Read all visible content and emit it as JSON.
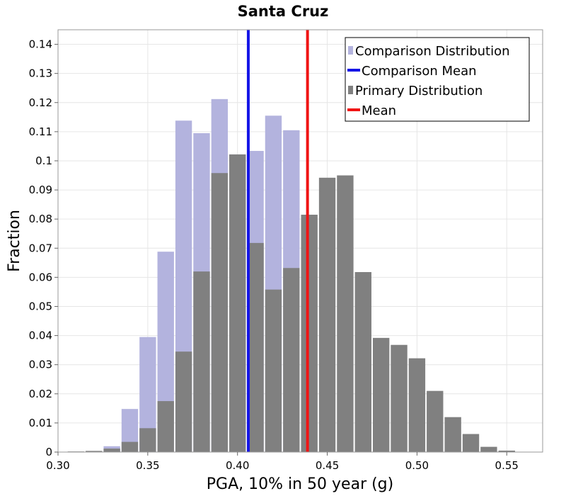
{
  "chart_data": {
    "type": "bar",
    "title": "Santa Cruz",
    "xlabel": "PGA, 10% in 50 year (g)",
    "ylabel": "Fraction",
    "xlim": [
      0.3,
      0.57
    ],
    "ylim": [
      0,
      0.145
    ],
    "xticks": [
      0.3,
      0.35,
      0.4,
      0.45,
      0.5,
      0.55
    ],
    "xtick_labels": [
      "0.30",
      "0.35",
      "0.40",
      "0.45",
      "0.50",
      "0.55"
    ],
    "yticks": [
      0,
      0.01,
      0.02,
      0.03,
      0.04,
      0.05,
      0.06,
      0.07,
      0.08,
      0.09,
      0.1,
      0.11,
      0.12,
      0.13,
      0.14
    ],
    "ytick_labels": [
      "0",
      "0.01",
      "0.02",
      "0.03",
      "0.04",
      "0.05",
      "0.06",
      "0.07",
      "0.08",
      "0.09",
      "0.1",
      "0.11",
      "0.12",
      "0.13",
      "0.14"
    ],
    "bin_width": 0.01,
    "grid": true,
    "legend_position": "top-right",
    "series": [
      {
        "name": "Comparison Distribution",
        "color": "#b3b3de",
        "bin_centers": [
          0.31,
          0.32,
          0.33,
          0.34,
          0.35,
          0.36,
          0.37,
          0.38,
          0.39,
          0.4,
          0.41,
          0.42,
          0.43
        ],
        "values": [
          0.0,
          0.0,
          0.002,
          0.0148,
          0.0395,
          0.0688,
          0.1138,
          0.1095,
          0.1212,
          0.1022,
          0.1034,
          0.1155,
          0.1105
        ]
      },
      {
        "name": "Primary Distribution",
        "color": "#808080",
        "bin_centers": [
          0.31,
          0.32,
          0.33,
          0.34,
          0.35,
          0.36,
          0.37,
          0.38,
          0.39,
          0.4,
          0.41,
          0.42,
          0.43,
          0.44,
          0.45,
          0.46,
          0.47,
          0.48,
          0.49,
          0.5,
          0.51,
          0.52,
          0.53,
          0.54,
          0.55
        ],
        "values": [
          0.0002,
          0.0004,
          0.0012,
          0.0035,
          0.0082,
          0.0175,
          0.0345,
          0.062,
          0.0958,
          0.1022,
          0.0718,
          0.0558,
          0.0632,
          0.0815,
          0.0942,
          0.095,
          0.0618,
          0.0392,
          0.0368,
          0.0322,
          0.021,
          0.012,
          0.0062,
          0.0018,
          0.0005
        ]
      }
    ],
    "lines": [
      {
        "name": "Comparison Mean",
        "x": 0.406,
        "color": "#1414e6"
      },
      {
        "name": "Mean",
        "x": 0.439,
        "color": "#f01414"
      }
    ],
    "legend": [
      {
        "label": "Comparison Distribution",
        "kind": "box",
        "color": "#b3b3de"
      },
      {
        "label": "Comparison Mean",
        "kind": "line",
        "color": "#1414e6"
      },
      {
        "label": "Primary Distribution",
        "kind": "box",
        "color": "#808080"
      },
      {
        "label": "Mean",
        "kind": "line",
        "color": "#f01414"
      }
    ]
  }
}
